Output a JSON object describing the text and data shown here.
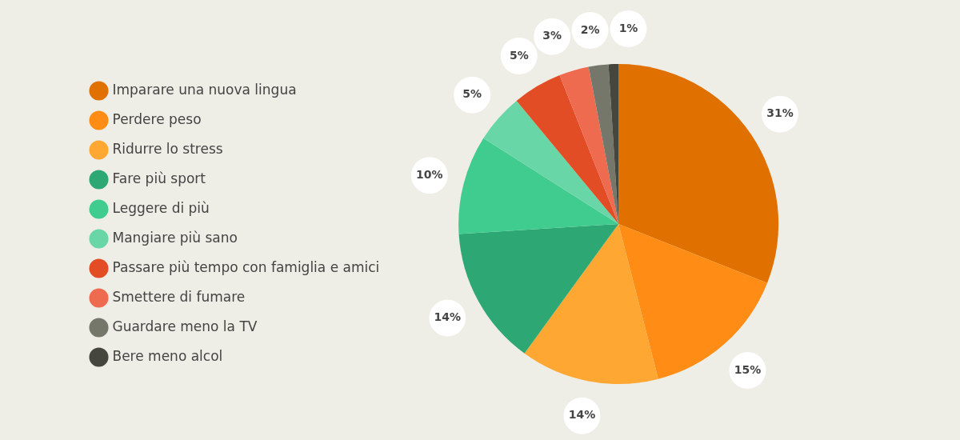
{
  "chart_data": {
    "type": "pie",
    "categories": [
      "Imparare una nuova lingua",
      "Perdere peso",
      "Ridurre lo stress",
      "Fare più sport",
      "Leggere di più",
      "Mangiare più sano",
      "Passare più tempo con famiglia e amici",
      "Smettere di fumare",
      "Guardare meno la TV",
      "Bere meno alcol"
    ],
    "values": [
      31,
      15,
      14,
      14,
      10,
      5,
      5,
      3,
      2,
      1
    ],
    "value_labels": [
      "31%",
      "15%",
      "14%",
      "14%",
      "10%",
      "5%",
      "5%",
      "3%",
      "2%",
      "1%"
    ],
    "colors": [
      "#e07000",
      "#ff8c14",
      "#ffa733",
      "#2da874",
      "#40cc8f",
      "#68d6a6",
      "#e34d26",
      "#ee6b50",
      "#76776b",
      "#45463e"
    ],
    "legend": "left"
  }
}
